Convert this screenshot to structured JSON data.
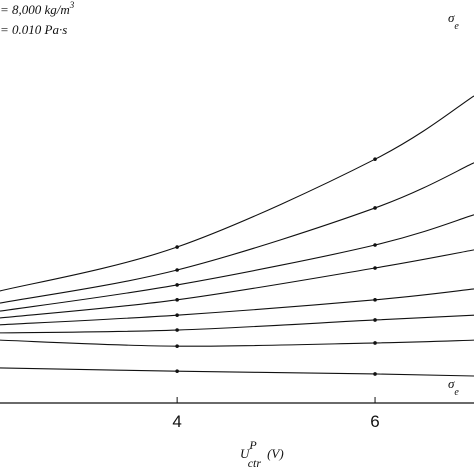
{
  "chart_data": {
    "type": "line",
    "annotations": {
      "density": {
        "text": "= 8,000 kg/m",
        "sup": "3"
      },
      "viscosity": {
        "text": "= 0.010 Pa·s"
      },
      "sigma_top": {
        "text": "σ",
        "sub": "e"
      },
      "sigma_bottom": {
        "text": "σ",
        "sub": "e"
      }
    },
    "xlabel": {
      "main": "U",
      "sup": "P",
      "sub": "ctr",
      "unit": "(V)"
    },
    "x": [
      2.21,
      4,
      6,
      7
    ],
    "xlim": [
      2.21,
      7
    ],
    "xticks": [
      4,
      6
    ],
    "ylim": [
      0,
      100
    ],
    "color": "#111111",
    "series": [
      {
        "values": [
          27.8,
          38.7,
          60.5,
          76.2
        ]
      },
      {
        "values": [
          24.8,
          33.0,
          48.4,
          59.6
        ]
      },
      {
        "values": [
          22.8,
          29.3,
          39.2,
          46.7
        ]
      },
      {
        "values": [
          21.1,
          25.6,
          33.5,
          38.0
        ]
      },
      {
        "values": [
          19.4,
          21.8,
          25.6,
          28.3
        ]
      },
      {
        "values": [
          17.4,
          18.1,
          20.6,
          21.8
        ]
      },
      {
        "values": [
          15.6,
          14.1,
          14.9,
          15.6
        ]
      },
      {
        "values": [
          8.7,
          7.9,
          7.2,
          6.7
        ]
      }
    ]
  }
}
